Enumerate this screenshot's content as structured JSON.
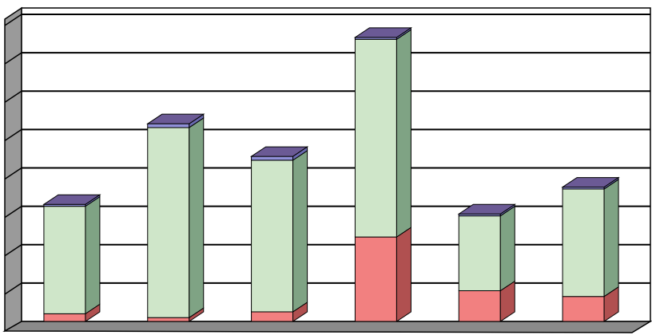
{
  "chart_data": {
    "type": "bar",
    "stacked": true,
    "three_d": true,
    "title": "",
    "xlabel": "",
    "ylabel": "",
    "ylim": [
      0,
      8
    ],
    "grid": true,
    "legend": "none",
    "categories": [
      "",
      "",
      "",
      "",
      "",
      ""
    ],
    "series": [
      {
        "values": [
          0.2,
          0.1,
          0.25,
          2.2,
          0.8,
          0.65
        ],
        "color": "#f28080",
        "side_color": "#b05050"
      },
      {
        "values": [
          2.8,
          4.95,
          3.95,
          5.15,
          1.95,
          2.8
        ],
        "color": "#cfe6c9",
        "side_color": "#7fa384"
      },
      {
        "values": [
          0.05,
          0.1,
          0.1,
          0.05,
          0.05,
          0.05
        ],
        "color": "#9090d8",
        "side_color": "#6a6ab0"
      }
    ],
    "colors": {
      "top": "#6b5a95",
      "wall": "#ffffff",
      "side_wall": "#9a9a9a",
      "floor": "#8a8a8a",
      "grid": "#000000"
    }
  }
}
